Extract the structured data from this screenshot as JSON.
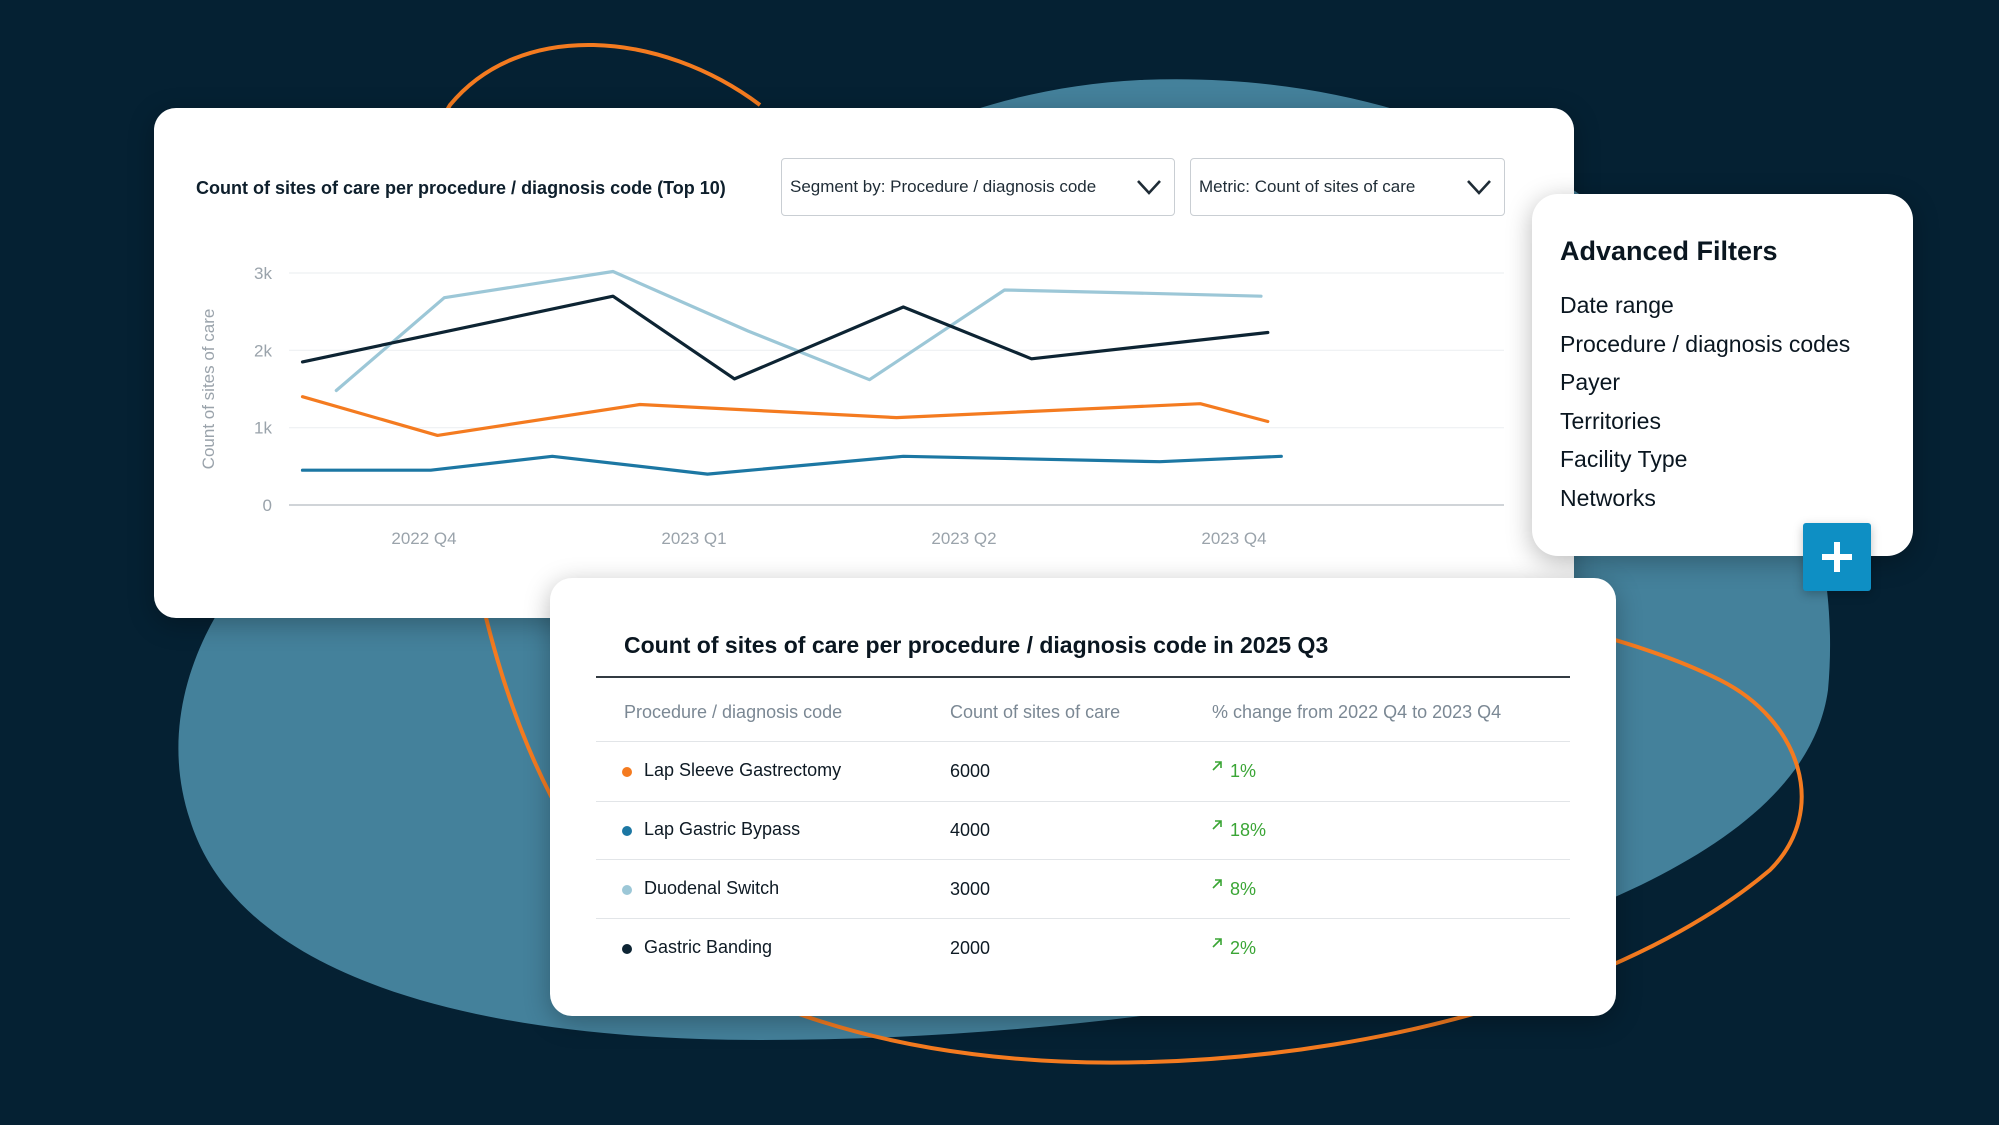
{
  "theme": {
    "background": "#052133",
    "blob": "#44819b",
    "accent_orange": "#f47b20",
    "button_blue": "#0e8fc4",
    "positive_green": "#3aa535"
  },
  "chart_card": {
    "title": "Count of sites of care per procedure / diagnosis code (Top 10)",
    "segment_dropdown": {
      "label": "Segment by: Procedure / diagnosis code",
      "icon": "chevron-down-icon"
    },
    "metric_dropdown": {
      "label": "Metric: Count of sites of care",
      "icon": "chevron-down-icon"
    }
  },
  "chart_data": {
    "type": "line",
    "ylabel": "Count of sites of care",
    "ylim": [
      0,
      3000
    ],
    "y_ticks": [
      {
        "value": 0,
        "label": "0"
      },
      {
        "value": 1000,
        "label": "1k"
      },
      {
        "value": 2000,
        "label": "2k"
      },
      {
        "value": 3000,
        "label": "3k"
      }
    ],
    "xlim": [
      0,
      9
    ],
    "x_ticks": [
      {
        "value": 1,
        "label": "2022 Q4"
      },
      {
        "value": 3,
        "label": "2023 Q1"
      },
      {
        "value": 5,
        "label": "2023 Q2"
      },
      {
        "value": 7,
        "label": "2023 Q4"
      }
    ],
    "grid": "horizontal",
    "series": [
      {
        "color": "#9cc7d7",
        "points": [
          [
            0.35,
            1480
          ],
          [
            1.15,
            2680
          ],
          [
            2.4,
            3020
          ],
          [
            3.4,
            2250
          ],
          [
            4.3,
            1620
          ],
          [
            5.3,
            2780
          ],
          [
            6.3,
            2740
          ],
          [
            7.2,
            2700
          ]
        ]
      },
      {
        "color": "#0d2433",
        "points": [
          [
            0.1,
            1850
          ],
          [
            2.4,
            2700
          ],
          [
            3.3,
            1630
          ],
          [
            4.55,
            2560
          ],
          [
            5.5,
            1890
          ],
          [
            7.25,
            2230
          ]
        ]
      },
      {
        "color": "#f47b20",
        "points": [
          [
            0.1,
            1400
          ],
          [
            1.1,
            900
          ],
          [
            2.6,
            1300
          ],
          [
            4.5,
            1130
          ],
          [
            6.75,
            1310
          ],
          [
            7.25,
            1080
          ]
        ]
      },
      {
        "color": "#1c77a3",
        "points": [
          [
            0.1,
            450
          ],
          [
            1.05,
            450
          ],
          [
            1.95,
            630
          ],
          [
            3.1,
            400
          ],
          [
            4.55,
            630
          ],
          [
            6.45,
            560
          ],
          [
            7.35,
            630
          ]
        ]
      }
    ]
  },
  "advanced_filters": {
    "title": "Advanced Filters",
    "items": [
      "Date range",
      "Procedure / diagnosis codes",
      "Payer",
      "Territories",
      "Facility Type",
      "Networks"
    ],
    "add_button_icon": "plus-icon"
  },
  "table_card": {
    "title": "Count of sites of care per procedure / diagnosis code in 2025 Q3",
    "columns": [
      "Procedure / diagnosis code",
      "Count of sites of care",
      "% change from 2022 Q4 to 2023 Q4"
    ],
    "rows": [
      {
        "name": "Lap Sleeve Gastrectomy",
        "count": "6000",
        "change": "1%",
        "dot_color": "#f47b20"
      },
      {
        "name": "Lap Gastric Bypass",
        "count": "4000",
        "change": "18%",
        "dot_color": "#1c77a3"
      },
      {
        "name": "Duodenal Switch",
        "count": "3000",
        "change": "8%",
        "dot_color": "#9cc7d7"
      },
      {
        "name": "Gastric Banding",
        "count": "2000",
        "change": "2%",
        "dot_color": "#0d2433"
      }
    ],
    "change_icon": "arrow-up-right-icon"
  }
}
